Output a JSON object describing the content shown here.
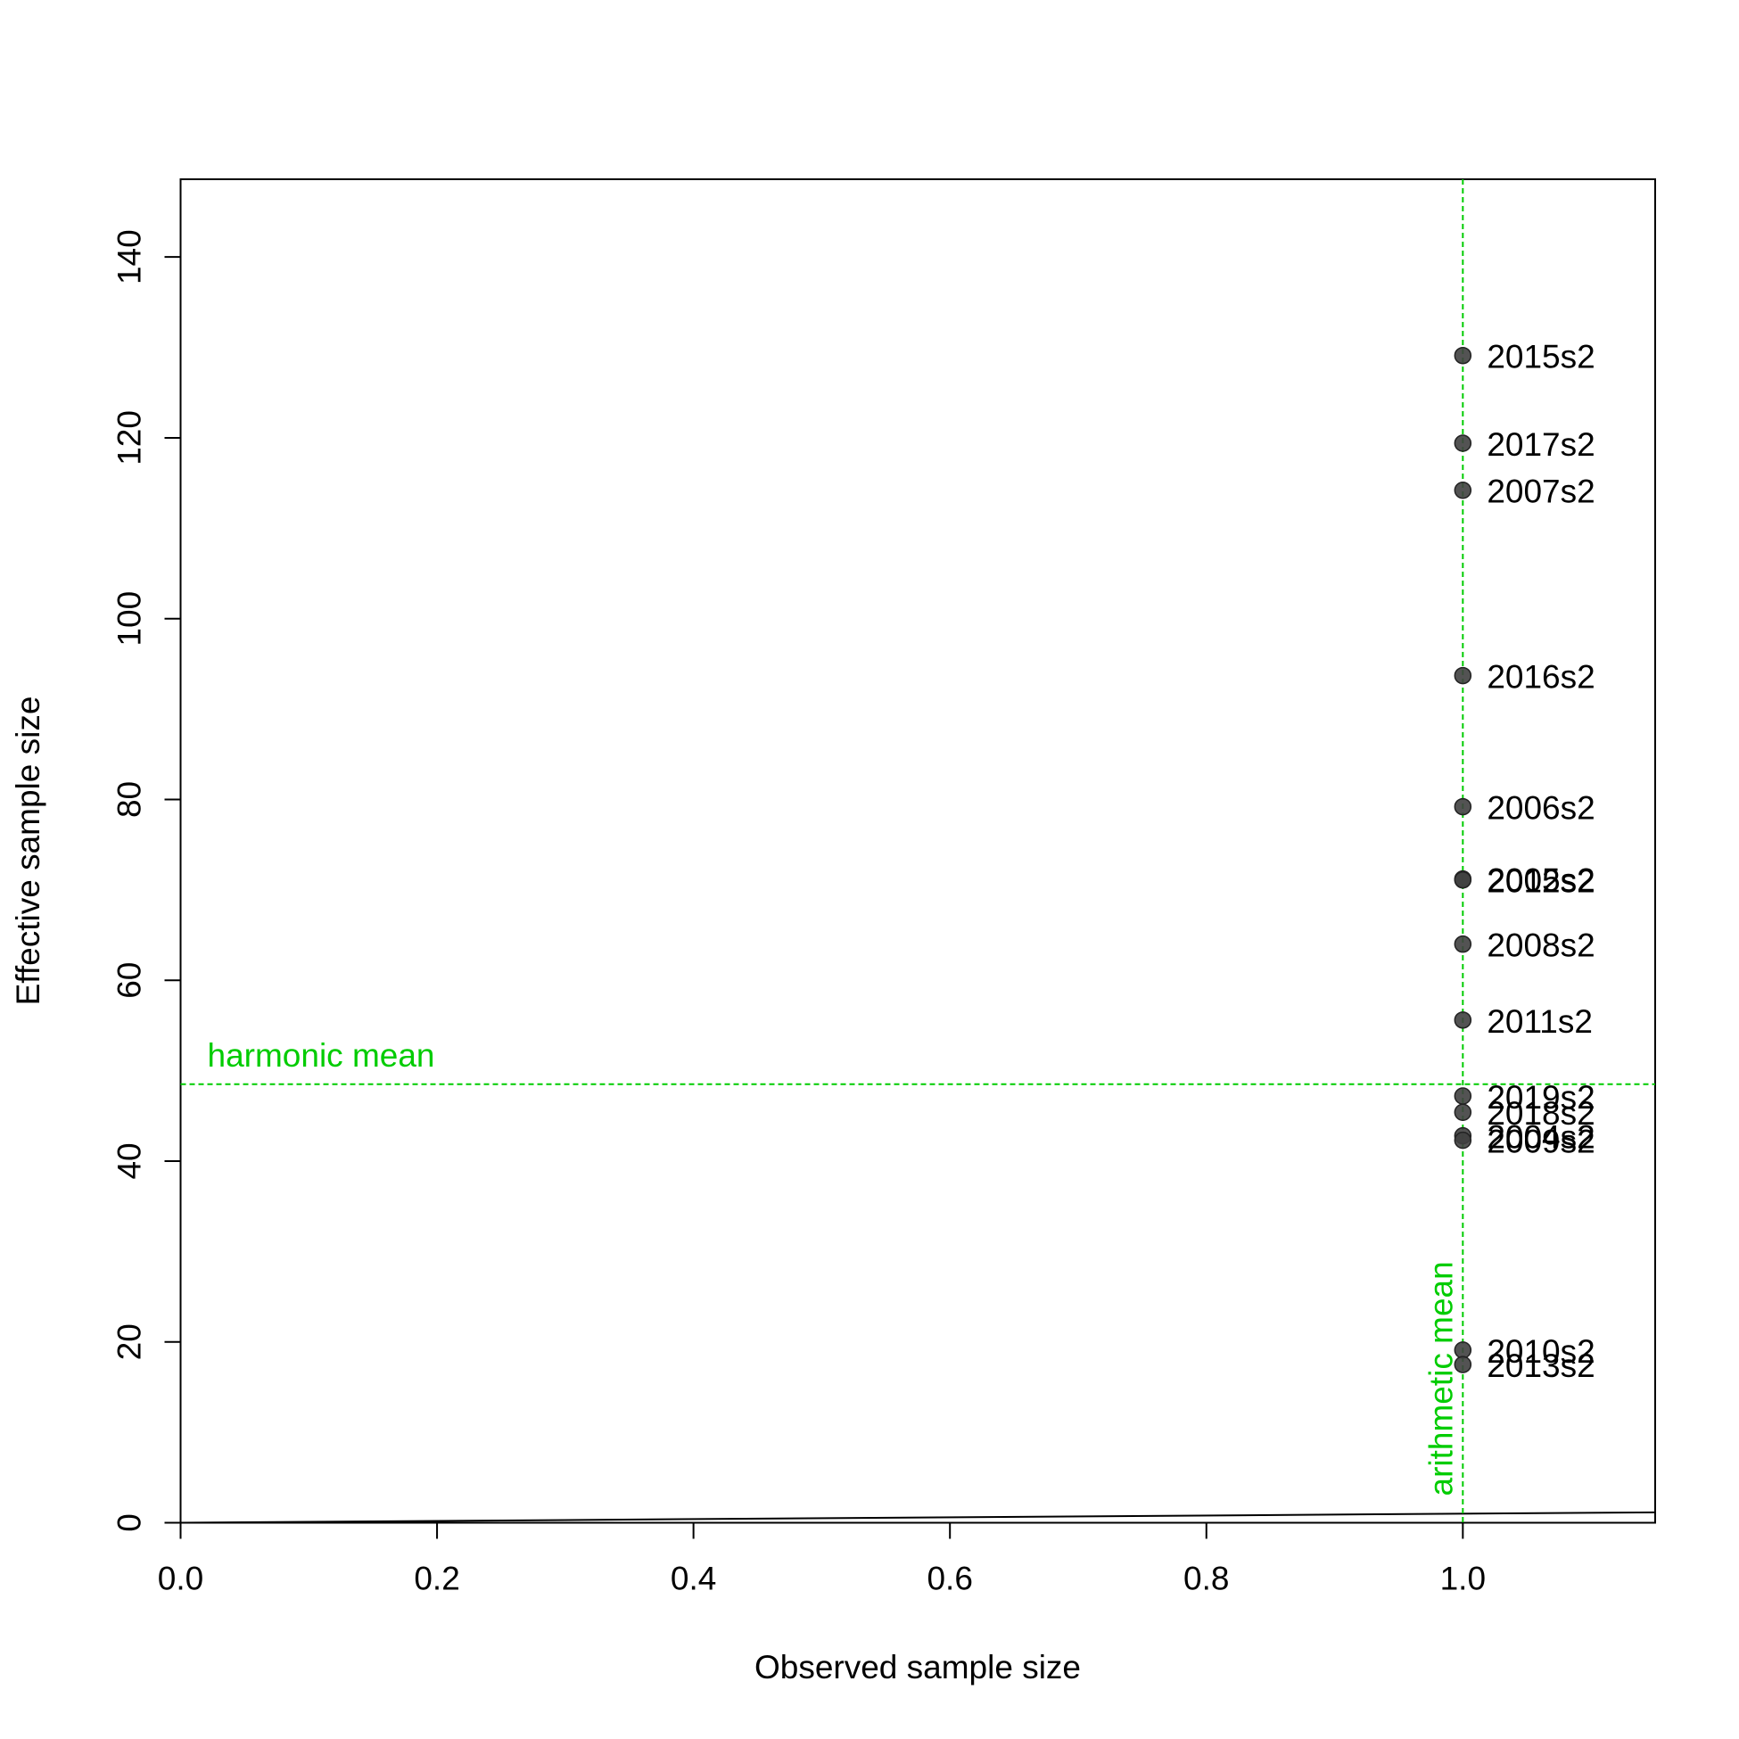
{
  "chart_data": {
    "type": "scatter",
    "x_label": "Observed sample size",
    "y_label": "Effective sample size",
    "xlim": [
      0,
      1.15
    ],
    "ylim": [
      0,
      148.6
    ],
    "xticks": [
      {
        "value": 0,
        "label": "0.0"
      },
      0.2,
      0.4,
      0.6,
      0.8,
      {
        "value": 1,
        "label": "1.0"
      }
    ],
    "yticks": [
      0,
      20,
      40,
      60,
      80,
      100,
      120,
      140
    ],
    "point_color": "#404040",
    "labels": [
      "2015s2",
      "2017s2",
      "2007s2",
      "2016s2",
      "2006s2",
      "2005s2",
      "2012s2",
      "2008s2",
      "2011s2",
      "2019s2",
      "2018s2",
      "2004s2",
      "2009s2",
      "2010s2",
      "2013s2"
    ],
    "x": [
      1,
      1,
      1,
      1,
      1,
      1,
      1,
      1,
      1,
      1,
      1,
      1,
      1,
      1,
      1
    ],
    "y": [
      129.1,
      119.4,
      114.2,
      93.7,
      79.2,
      71.2,
      71.1,
      64.0,
      55.6,
      47.2,
      45.4,
      42.8,
      42.3,
      19.1,
      17.5
    ],
    "identity_line": {
      "x": [
        0,
        1.15
      ],
      "y": [
        0,
        1.15
      ],
      "color": "#000000"
    },
    "harmonic_mean": {
      "label": "harmonic mean",
      "value": 48.5,
      "color": "#00cc00"
    },
    "arithmetic_mean": {
      "label": "arithmetic mean",
      "value": 1,
      "color": "#00cc00"
    }
  }
}
